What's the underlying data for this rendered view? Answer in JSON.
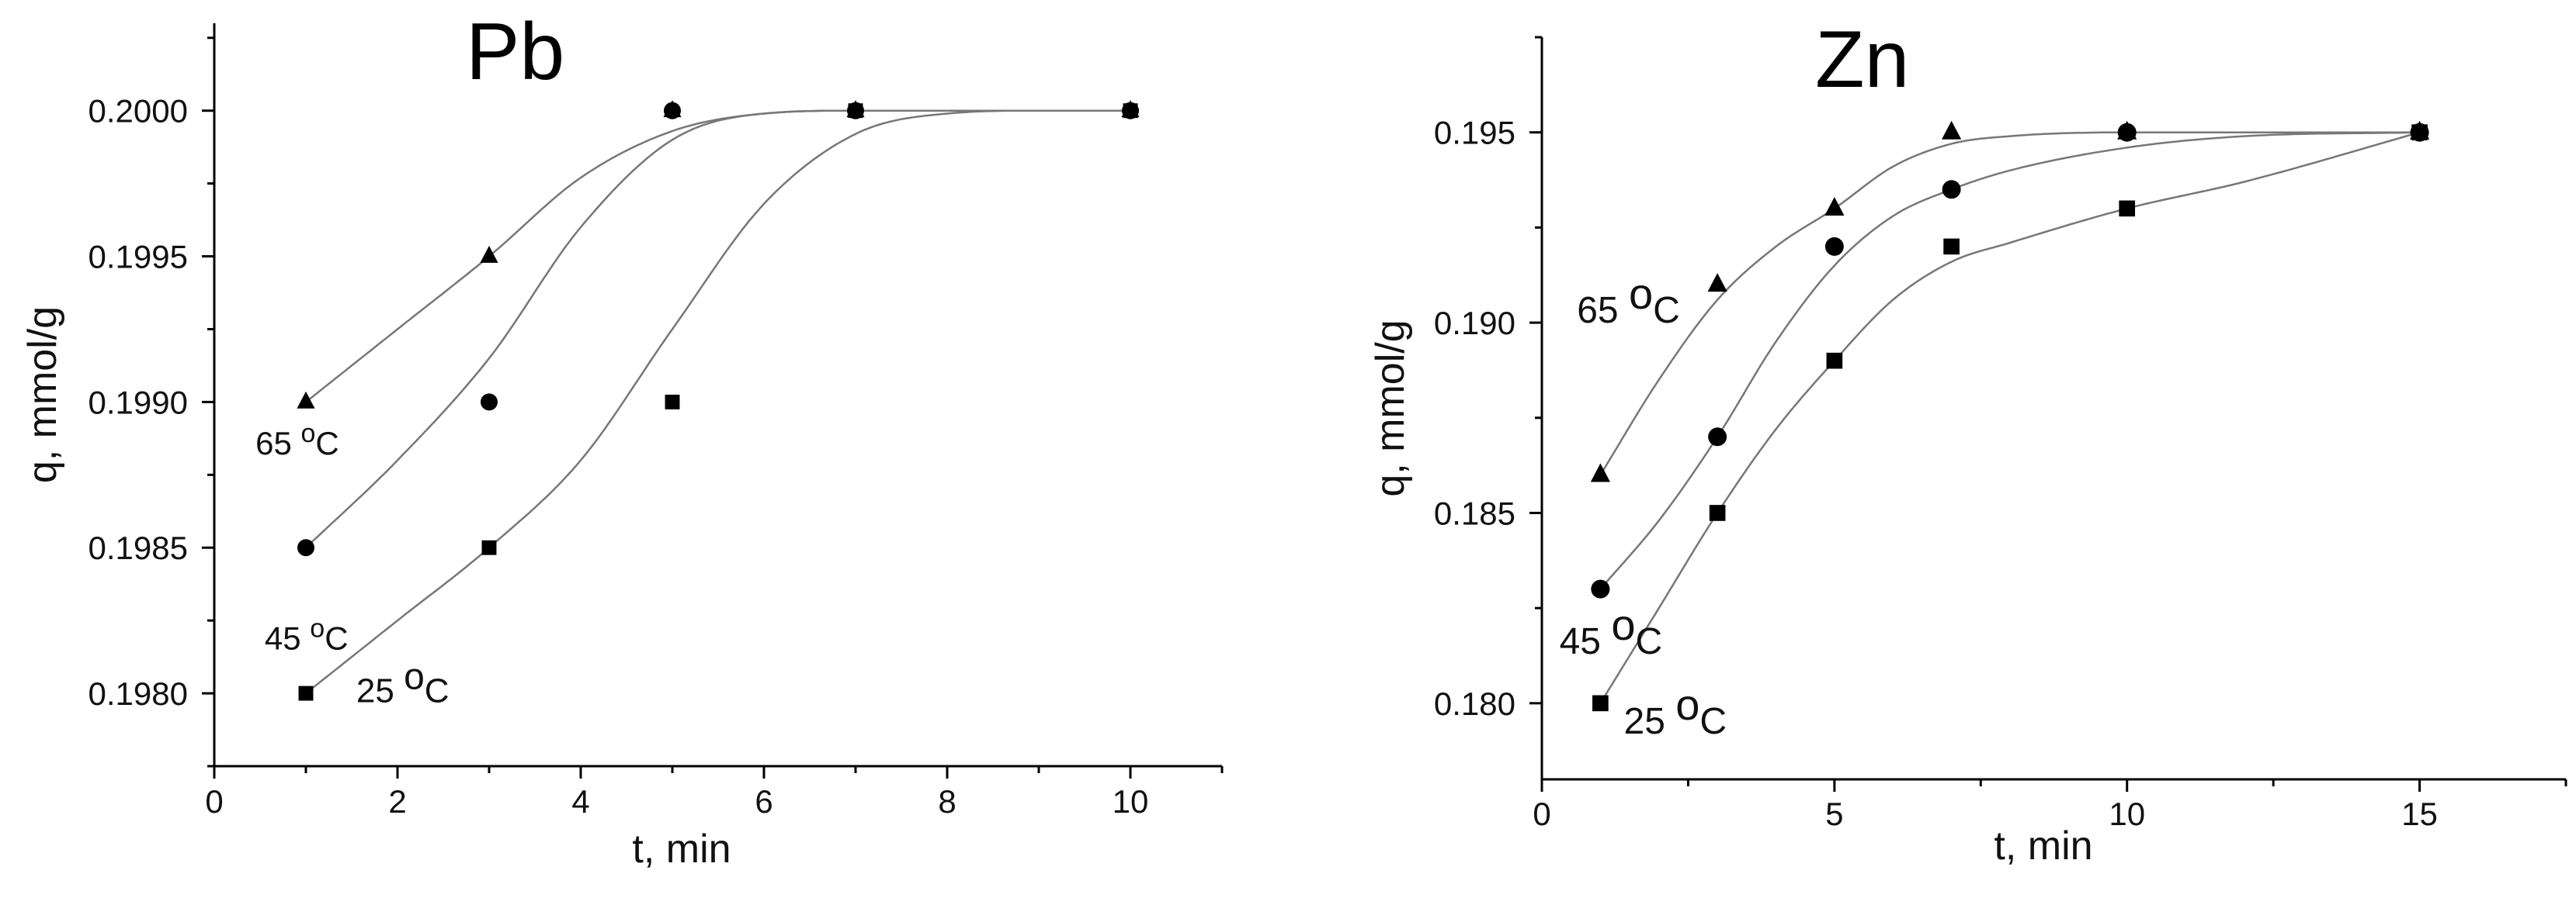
{
  "chart_data": [
    {
      "type": "scatter",
      "title": "Pb",
      "xlabel": "t, min",
      "ylabel": "q, mmol/g",
      "xlim": [
        0,
        11
      ],
      "ylim": [
        0.19775,
        0.2003
      ],
      "xticks": [
        0,
        2,
        4,
        6,
        8,
        10
      ],
      "xtick_labels": [
        "0",
        "2",
        "4",
        "6",
        "8",
        "10"
      ],
      "yticks": [
        0.198,
        0.1985,
        0.199,
        0.1995,
        0.2
      ],
      "ytick_labels": [
        "0.1980",
        "0.1985",
        "0.1990",
        "0.1995",
        "0.2000"
      ],
      "grid": false,
      "series": [
        {
          "name": "65 °C",
          "marker": "triangle",
          "x": [
            1,
            3,
            5,
            7,
            10
          ],
          "y": [
            0.199,
            0.1995,
            0.2,
            0.2,
            0.2
          ],
          "fit_curve": {
            "x": [
              1,
              2,
              3,
              4,
              5,
              6,
              7,
              8,
              10
            ],
            "y": [
              0.199,
              0.19925,
              0.1995,
              0.19977,
              0.19993,
              0.19999,
              0.2,
              0.2,
              0.2
            ]
          }
        },
        {
          "name": "45 °C",
          "marker": "circle",
          "x": [
            1,
            3,
            5,
            7,
            10
          ],
          "y": [
            0.1985,
            0.199,
            0.2,
            0.2,
            0.2
          ],
          "fit_curve": {
            "x": [
              1,
              2,
              3,
              4,
              5,
              6,
              7,
              8,
              10
            ],
            "y": [
              0.1985,
              0.1988,
              0.19915,
              0.1996,
              0.1999,
              0.19999,
              0.2,
              0.2,
              0.2
            ]
          }
        },
        {
          "name": "25 °C",
          "marker": "square",
          "x": [
            1,
            3,
            5,
            7,
            10
          ],
          "y": [
            0.198,
            0.1985,
            0.199,
            0.2,
            0.2
          ],
          "fit_curve": {
            "x": [
              1,
              2,
              3,
              4,
              5,
              6,
              7,
              8,
              9,
              10
            ],
            "y": [
              0.198,
              0.19825,
              0.1985,
              0.1988,
              0.19925,
              0.19968,
              0.19992,
              0.19999,
              0.2,
              0.2
            ]
          }
        }
      ],
      "annotations": [
        {
          "text": "65 ",
          "sup": "o",
          "after": "C",
          "x": 0.45,
          "y": 0.19882,
          "font": 42,
          "sup_font": 34
        },
        {
          "text": "45 ",
          "sup": "o",
          "after": "C",
          "x": 0.55,
          "y": 0.19815,
          "font": 42,
          "sup_font": 34
        },
        {
          "text": "25 ",
          "sup": "o",
          "after": "C",
          "x": 1.55,
          "y": 0.19797,
          "font": 44,
          "sup_font": 48
        }
      ]
    },
    {
      "type": "scatter",
      "title": "Zn",
      "xlabel": "t, min",
      "ylabel": "q, mmol/g",
      "xlim": [
        0,
        17.5
      ],
      "ylim": [
        0.178,
        0.1975
      ],
      "xticks": [
        0,
        5,
        10,
        15
      ],
      "xtick_labels": [
        "0",
        "5",
        "10",
        "15"
      ],
      "yticks": [
        0.18,
        0.185,
        0.19,
        0.195
      ],
      "ytick_labels": [
        "0.180",
        "0.185",
        "0.190",
        "0.195"
      ],
      "grid": false,
      "series": [
        {
          "name": "65 °C",
          "marker": "triangle",
          "x": [
            1,
            3,
            5,
            7,
            10,
            15
          ],
          "y": [
            0.186,
            0.191,
            0.193,
            0.195,
            0.195,
            0.195
          ],
          "fit_curve": {
            "x": [
              1,
              2,
              3,
              4,
              5,
              6,
              7,
              8,
              10,
              15
            ],
            "y": [
              0.186,
              0.1885,
              0.1906,
              0.192,
              0.193,
              0.1941,
              0.1947,
              0.1949,
              0.195,
              0.195
            ]
          }
        },
        {
          "name": "45 °C",
          "marker": "circle",
          "x": [
            1,
            3,
            5,
            7,
            10,
            15
          ],
          "y": [
            0.183,
            0.187,
            0.192,
            0.1935,
            0.195,
            0.195
          ],
          "fit_curve": {
            "x": [
              1,
              2,
              3,
              4,
              5,
              6,
              7,
              8,
              10,
              12,
              15
            ],
            "y": [
              0.183,
              0.1848,
              0.187,
              0.1895,
              0.1915,
              0.1928,
              0.1935,
              0.194,
              0.1946,
              0.1949,
              0.195
            ]
          }
        },
        {
          "name": "25 °C",
          "marker": "square",
          "x": [
            1,
            3,
            5,
            7,
            10,
            15
          ],
          "y": [
            0.18,
            0.185,
            0.189,
            0.192,
            0.193,
            0.195
          ],
          "fit_curve": {
            "x": [
              1,
              2,
              3,
              4,
              5,
              6,
              7,
              8,
              10,
              12,
              15
            ],
            "y": [
              0.18,
              0.1825,
              0.185,
              0.1872,
              0.189,
              0.1906,
              0.1916,
              0.1921,
              0.193,
              0.1937,
              0.195
            ]
          }
        }
      ],
      "annotations": [
        {
          "text": "65 ",
          "sup": "o",
          "after": "C",
          "x": 0.6,
          "y": 0.19,
          "font": 48,
          "sup_font": 56
        },
        {
          "text": "45 ",
          "sup": "o",
          "after": "C",
          "x": 0.3,
          "y": 0.1813,
          "font": 48,
          "sup_font": 56
        },
        {
          "text": "25 ",
          "sup": "o",
          "after": "C",
          "x": 1.4,
          "y": 0.1792,
          "font": 48,
          "sup_font": 56
        }
      ]
    }
  ]
}
